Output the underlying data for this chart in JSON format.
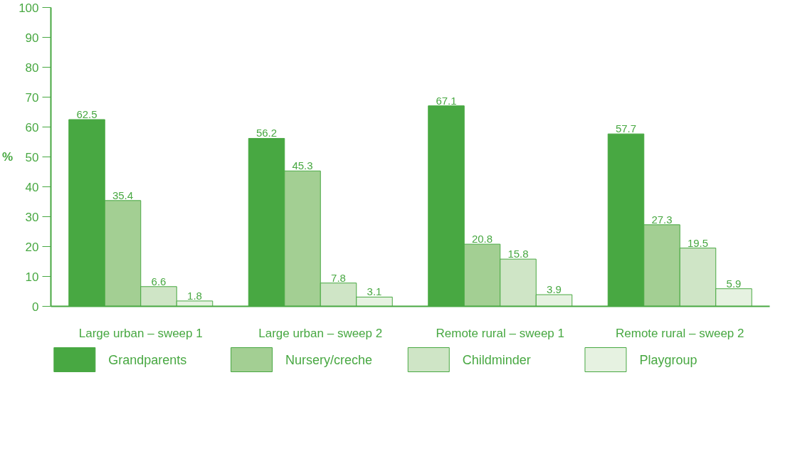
{
  "chart_data": {
    "type": "bar",
    "ylabel": "%",
    "categories": [
      "Large urban – sweep 1",
      "Large urban – sweep 2",
      "Remote rural – sweep 1",
      "Remote rural – sweep 2"
    ],
    "series": [
      {
        "name": "Grandparents",
        "color": "#48a842",
        "values": [
          62.5,
          56.2,
          67.1,
          57.7
        ]
      },
      {
        "name": "Nursery/creche",
        "color": "#a3cf93",
        "values": [
          35.4,
          45.3,
          20.8,
          27.3
        ]
      },
      {
        "name": "Childminder",
        "color": "#cfe5c6",
        "values": [
          6.6,
          7.8,
          15.8,
          19.5
        ]
      },
      {
        "name": "Playgroup",
        "color": "#e6f2e1",
        "values": [
          1.8,
          3.1,
          3.9,
          5.9
        ]
      }
    ],
    "ylim": [
      0,
      100
    ],
    "yticks": [
      0,
      10,
      20,
      30,
      40,
      50,
      60,
      70,
      80,
      90,
      100
    ],
    "grid": false,
    "legend": "bottom",
    "data_labels": true
  }
}
